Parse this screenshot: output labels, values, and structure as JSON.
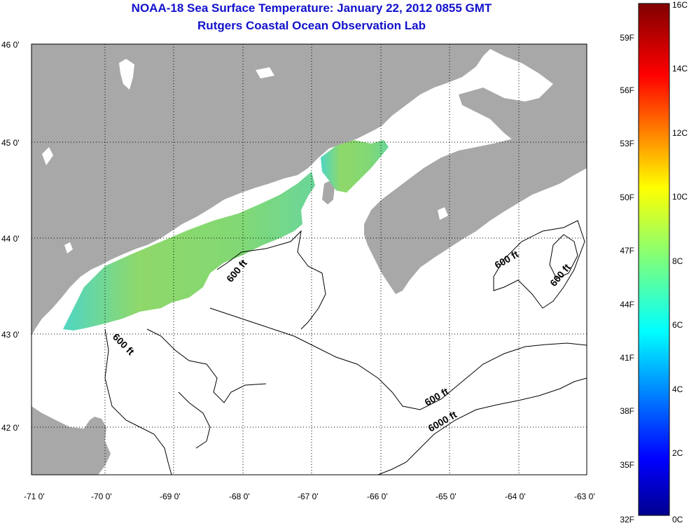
{
  "title_line1": "NOAA-18 Sea Surface Temperature:  January 22, 2012 0855 GMT",
  "title_line2": "Rutgers Coastal Ocean Observation Lab",
  "latitude_labels": [
    "46 0'",
    "45 0'",
    "44 0'",
    "43 0'",
    "42 0'"
  ],
  "longitude_labels": [
    "-71 0'",
    "-70 0'",
    "-69 0'",
    "-68 0'",
    "-67 0'",
    "-66 0'",
    "-65 0'",
    "-64 0'",
    "-63 0'"
  ],
  "contour_labels": [
    "600 ft",
    "600 ft",
    "600 ft",
    "600 ft",
    "600 ft",
    "6000 ft"
  ],
  "colorbar": {
    "fahrenheit_labels": [
      "59F",
      "56F",
      "53F",
      "50F",
      "47F",
      "44F",
      "41F",
      "38F",
      "35F",
      "32F"
    ],
    "celsius_labels": [
      "16C",
      "14C",
      "12C",
      "10C",
      "8C",
      "6C",
      "4C",
      "2C",
      "0C"
    ]
  },
  "colors": {
    "land": "#a8a8a8",
    "water": "#ffffff",
    "title": "#1111cc",
    "sst_band": "#7cd87a"
  }
}
